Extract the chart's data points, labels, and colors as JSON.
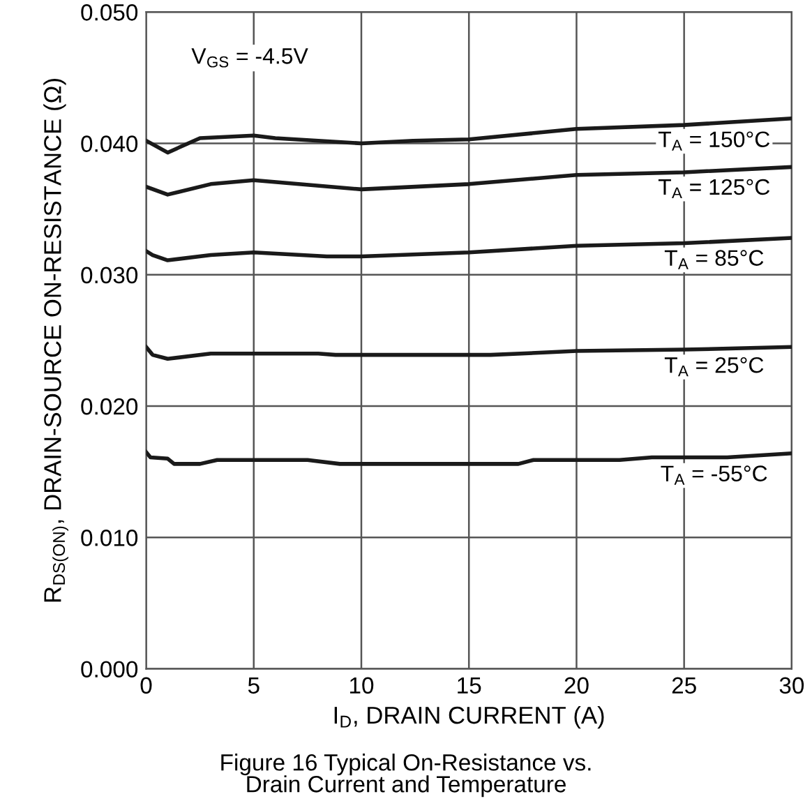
{
  "chart_data": {
    "type": "line",
    "title": "Figure 16 Typical On-Resistance vs.\nDrain Current and Temperature",
    "xlabel": "I$_{D}$, DRAIN CURRENT (A)",
    "ylabel": "R$_{DS(ON)}$, DRAIN-SOURCE ON-RESISTANCE (Ω)",
    "xlim": [
      0,
      30
    ],
    "xticks": [
      0,
      5,
      10,
      15,
      20,
      25,
      30
    ],
    "ylim": [
      0,
      0.05
    ],
    "yticks": [
      {
        "value": 0,
        "label": "0.000"
      },
      {
        "value": 0.01,
        "label": "0.010"
      },
      {
        "value": 0.02,
        "label": "0.020"
      },
      {
        "value": 0.03,
        "label": "0.030"
      },
      {
        "value": 0.04,
        "label": "0.040"
      },
      {
        "value": 0.05,
        "label": "0.050"
      }
    ],
    "grid": true,
    "legend": false,
    "marker": "none",
    "line_style": "solid",
    "series": [
      {
        "name": "T$_{A}$ = 150°C",
        "color": "#1a1a1a",
        "x": [
          0,
          1,
          2.5,
          5,
          6,
          10,
          12.4,
          15,
          20,
          25,
          30
        ],
        "values": [
          0.0402,
          0.0393,
          0.0404,
          0.0406,
          0.0404,
          0.04,
          0.0402,
          0.0403,
          0.0411,
          0.0414,
          0.0419
        ]
      },
      {
        "name": "T$_{A}$ = 125°C",
        "color": "#1a1a1a",
        "x": [
          0,
          1,
          3,
          5,
          10,
          15,
          20,
          25,
          30
        ],
        "values": [
          0.0367,
          0.0361,
          0.0369,
          0.0372,
          0.0365,
          0.0369,
          0.0376,
          0.0378,
          0.0382
        ]
      },
      {
        "name": "T$_{A}$ = 85°C",
        "color": "#1a1a1a",
        "x": [
          0,
          0.3,
          1,
          3,
          5,
          8.4,
          10,
          15,
          20,
          25,
          30
        ],
        "values": [
          0.0318,
          0.0315,
          0.0311,
          0.0315,
          0.0317,
          0.0314,
          0.0314,
          0.0317,
          0.0322,
          0.0324,
          0.0328
        ]
      },
      {
        "name": "T$_{A}$ = 25°C",
        "color": "#1a1a1a",
        "x": [
          0,
          0.3,
          1,
          3,
          5,
          8,
          8.8,
          10,
          15,
          16,
          18.8,
          20,
          25,
          30
        ],
        "values": [
          0.0245,
          0.0239,
          0.0236,
          0.024,
          0.024,
          0.024,
          0.0239,
          0.0239,
          0.0239,
          0.0239,
          0.0241,
          0.0242,
          0.0243,
          0.0245
        ]
      },
      {
        "name": "T$_{A}$ = -55°C",
        "color": "#1a1a1a",
        "x": [
          0,
          0.2,
          1,
          1.3,
          2.5,
          3.3,
          7.5,
          9,
          17.3,
          18,
          22,
          23.5,
          27,
          30
        ],
        "values": [
          0.0165,
          0.0161,
          0.016,
          0.0156,
          0.0156,
          0.0159,
          0.0159,
          0.0156,
          0.0156,
          0.0159,
          0.0159,
          0.0161,
          0.0161,
          0.0164
        ]
      }
    ],
    "annotations": [
      "V$_{GS}$ = -4.5V"
    ]
  }
}
